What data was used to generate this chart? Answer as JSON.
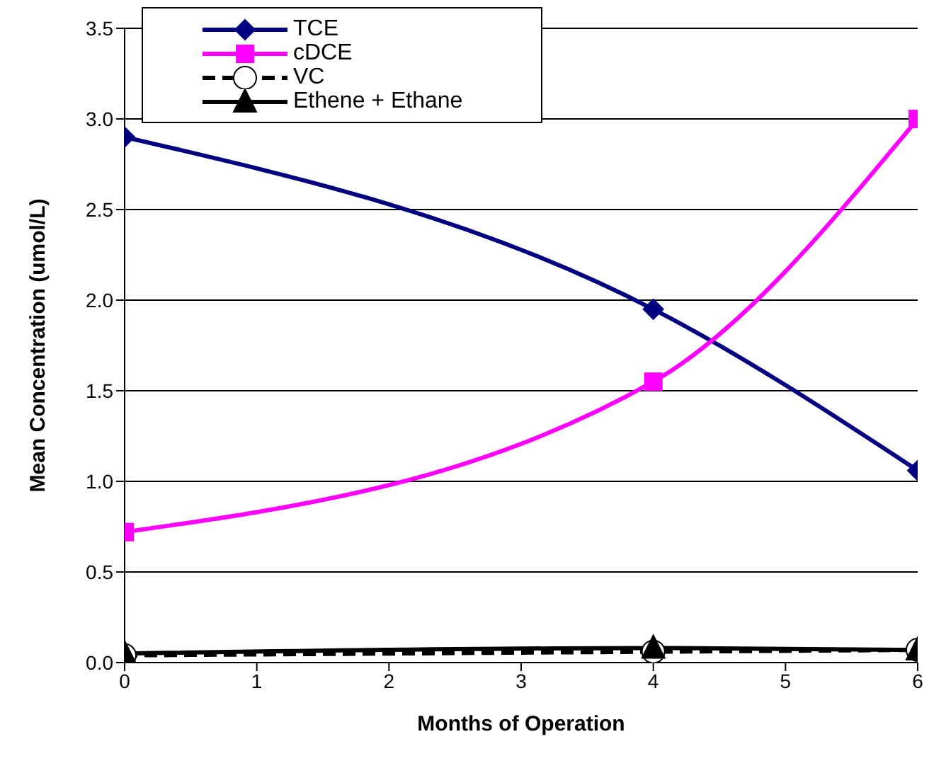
{
  "chart_data": {
    "type": "line",
    "xlabel": "Months of Operation",
    "ylabel": "Mean  Concentration (umol/L)",
    "x": [
      0,
      4,
      6
    ],
    "xlim": [
      0,
      6
    ],
    "xticks": [
      0,
      1,
      2,
      3,
      4,
      5,
      6
    ],
    "ylim": [
      0,
      3.5
    ],
    "yticks": [
      {
        "value": 0,
        "label": "0.0"
      },
      0.5,
      {
        "value": 1,
        "label": "1.0"
      },
      1.5,
      {
        "value": 2,
        "label": "2.0"
      },
      2.5,
      {
        "value": 3,
        "label": "3.0"
      },
      3.5
    ],
    "grid": "y",
    "legend": "top",
    "series": [
      {
        "name": "TCE",
        "color": "#000080",
        "values": [
          2.9,
          1.95,
          1.06
        ],
        "marker": "diamond",
        "line_style": "solid"
      },
      {
        "name": "cDCE",
        "color": "#ff00ff",
        "values": [
          0.72,
          1.55,
          3.0
        ],
        "marker": "square",
        "line_style": "solid"
      },
      {
        "name": "VC",
        "color": "#000000",
        "values": [
          0.04,
          0.06,
          0.07
        ],
        "marker": "circle",
        "line_style": "dashed"
      },
      {
        "name": "Ethene + Ethane",
        "color": "#000000",
        "values": [
          0.05,
          0.08,
          0.07
        ],
        "marker": "triangle",
        "line_style": "solid"
      }
    ]
  }
}
